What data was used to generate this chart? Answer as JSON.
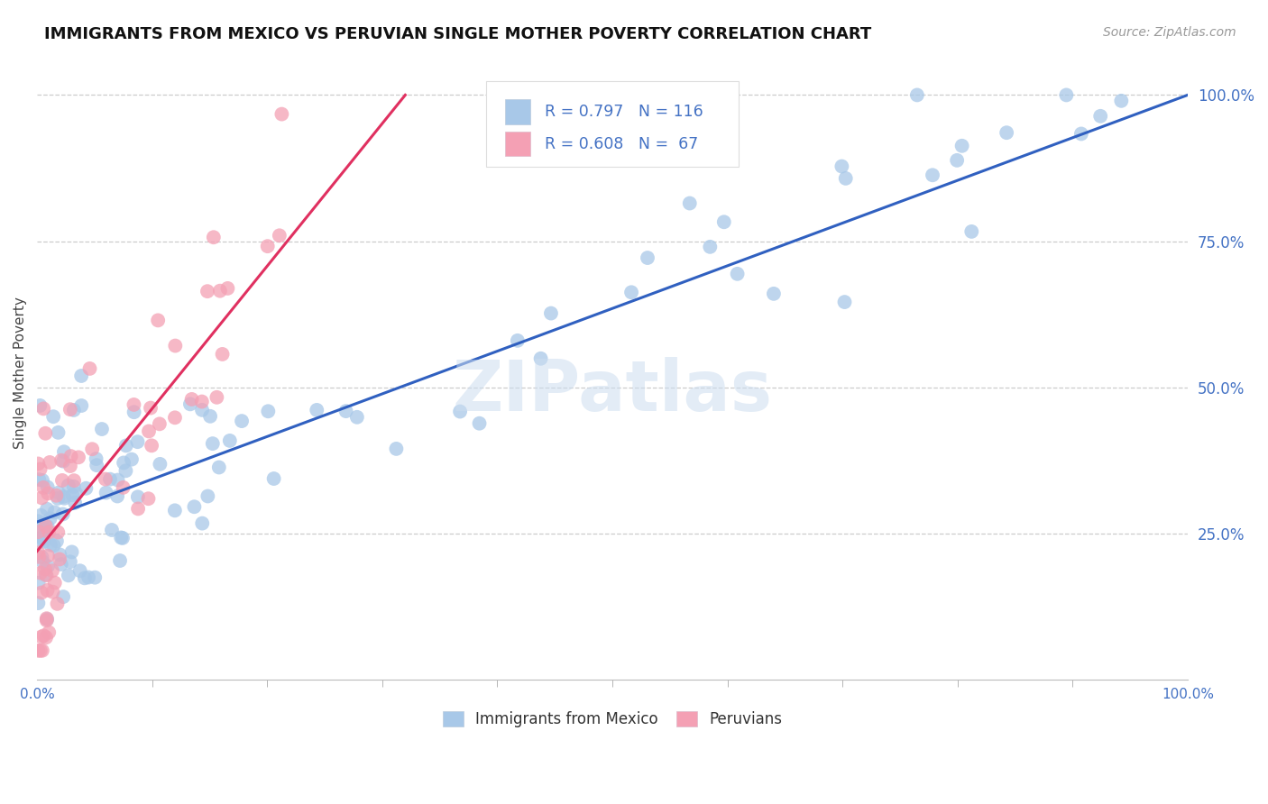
{
  "title": "IMMIGRANTS FROM MEXICO VS PERUVIAN SINGLE MOTHER POVERTY CORRELATION CHART",
  "source": "Source: ZipAtlas.com",
  "ylabel": "Single Mother Poverty",
  "blue_color": "#a8c8e8",
  "pink_color": "#f4a0b4",
  "blue_line_color": "#3060c0",
  "pink_line_color": "#e03060",
  "right_tick_color": "#4472c4",
  "legend_text_color": "#4472c4",
  "watermark": "ZIPatlas",
  "N_blue": 116,
  "N_pink": 67,
  "blue_line": [
    0.0,
    0.27,
    1.0,
    1.0
  ],
  "pink_line": [
    0.0,
    0.22,
    0.32,
    1.0
  ],
  "yticks": [
    0.25,
    0.5,
    0.75,
    1.0
  ],
  "ytick_labels": [
    "25.0%",
    "50.0%",
    "75.0%",
    "100.0%"
  ],
  "xlim": [
    0.0,
    1.0
  ],
  "ylim": [
    0.0,
    1.05
  ],
  "figsize": [
    14.06,
    8.92
  ],
  "dpi": 100
}
